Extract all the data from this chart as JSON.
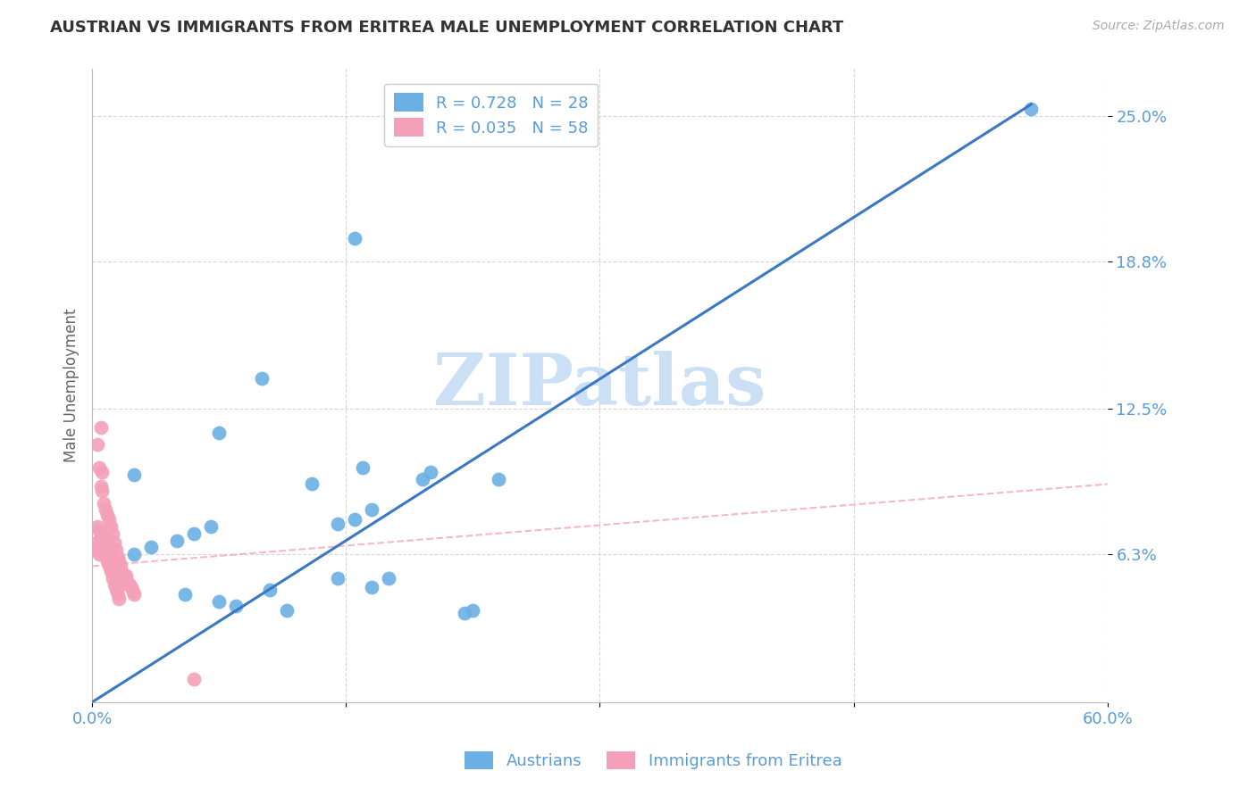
{
  "title": "AUSTRIAN VS IMMIGRANTS FROM ERITREA MALE UNEMPLOYMENT CORRELATION CHART",
  "source": "Source: ZipAtlas.com",
  "ylabel": "Male Unemployment",
  "ytick_labels": [
    "25.0%",
    "18.8%",
    "12.5%",
    "6.3%"
  ],
  "ytick_vals": [
    0.25,
    0.188,
    0.125,
    0.063
  ],
  "xlim": [
    0.0,
    0.6
  ],
  "ylim": [
    0.0,
    0.27
  ],
  "legend_entry_blue": "R = 0.728   N = 28",
  "legend_entry_pink": "R = 0.035   N = 58",
  "legend_label_austrians": "Austrians",
  "legend_label_eritrea": "Immigrants from Eritrea",
  "watermark": "ZIPatlas",
  "watermark_color": "#cce0f5",
  "blue_color": "#6ab0e4",
  "pink_color": "#f4a0b8",
  "blue_line_color": "#3b78c4",
  "pink_line_color": "#f4a0b8",
  "grid_color": "#cccccc",
  "title_color": "#333333",
  "axis_label_color": "#5b9bd5",
  "blue_line_x0": 0.0,
  "blue_line_y0": 0.0,
  "blue_line_x1": 0.555,
  "blue_line_y1": 0.255,
  "pink_line_x0": 0.0,
  "pink_line_y0": 0.058,
  "pink_line_x1": 0.6,
  "pink_line_y1": 0.093,
  "austrians_x": [
    0.025,
    0.075,
    0.1,
    0.155,
    0.025,
    0.035,
    0.05,
    0.06,
    0.07,
    0.145,
    0.155,
    0.165,
    0.195,
    0.055,
    0.075,
    0.085,
    0.105,
    0.115,
    0.145,
    0.165,
    0.175,
    0.225,
    0.555,
    0.22,
    0.24,
    0.2,
    0.16,
    0.13
  ],
  "austrians_y": [
    0.097,
    0.115,
    0.138,
    0.198,
    0.063,
    0.066,
    0.069,
    0.072,
    0.075,
    0.076,
    0.078,
    0.082,
    0.095,
    0.046,
    0.043,
    0.041,
    0.048,
    0.039,
    0.053,
    0.049,
    0.053,
    0.039,
    0.253,
    0.038,
    0.095,
    0.098,
    0.1,
    0.093
  ],
  "eritrea_x": [
    0.002,
    0.003,
    0.004,
    0.005,
    0.006,
    0.007,
    0.008,
    0.009,
    0.01,
    0.011,
    0.012,
    0.013,
    0.014,
    0.015,
    0.016,
    0.017,
    0.018,
    0.019,
    0.02,
    0.021,
    0.022,
    0.023,
    0.024,
    0.025,
    0.003,
    0.004,
    0.005,
    0.006,
    0.007,
    0.008,
    0.009,
    0.01,
    0.011,
    0.012,
    0.013,
    0.014,
    0.015,
    0.016,
    0.017,
    0.018,
    0.019,
    0.02,
    0.021,
    0.003,
    0.004,
    0.005,
    0.006,
    0.007,
    0.008,
    0.009,
    0.01,
    0.011,
    0.012,
    0.013,
    0.014,
    0.015,
    0.016,
    0.06
  ],
  "eritrea_y": [
    0.068,
    0.065,
    0.063,
    0.117,
    0.098,
    0.073,
    0.07,
    0.068,
    0.062,
    0.063,
    0.059,
    0.056,
    0.054,
    0.057,
    0.055,
    0.053,
    0.052,
    0.051,
    0.054,
    0.051,
    0.05,
    0.049,
    0.047,
    0.046,
    0.11,
    0.1,
    0.092,
    0.09,
    0.085,
    0.082,
    0.08,
    0.078,
    0.075,
    0.072,
    0.068,
    0.065,
    0.062,
    0.06,
    0.058,
    0.055,
    0.053,
    0.052,
    0.05,
    0.075,
    0.073,
    0.07,
    0.067,
    0.065,
    0.063,
    0.06,
    0.058,
    0.056,
    0.053,
    0.05,
    0.048,
    0.046,
    0.044,
    0.01
  ]
}
